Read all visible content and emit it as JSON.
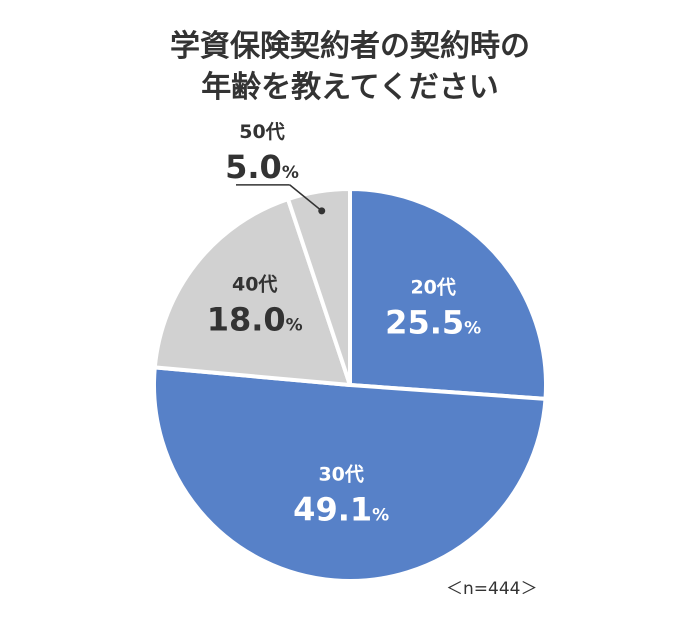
{
  "title": {
    "line1": "学資保険契約者の契約時の",
    "line2": "年齢を教えてください"
  },
  "colors": {
    "blue": "#5781c8",
    "gray": "#d1d1d1",
    "label_on_blue": "#ffffff",
    "label_on_gray": "#333333"
  },
  "chart_data": {
    "type": "pie",
    "slices": [
      {
        "label": "20代",
        "value": 25.5,
        "value_text": "25.5",
        "unit": "%",
        "color": "#5781c8"
      },
      {
        "label": "30代",
        "value": 49.1,
        "value_text": "49.1",
        "unit": "%",
        "color": "#5781c8"
      },
      {
        "label": "40代",
        "value": 18.0,
        "value_text": "18.0",
        "unit": "%",
        "color": "#d1d1d1"
      },
      {
        "label": "50代",
        "value": 5.0,
        "value_text": "5.0",
        "unit": "%",
        "color": "#d1d1d1"
      }
    ]
  },
  "note": "＜n=444＞"
}
